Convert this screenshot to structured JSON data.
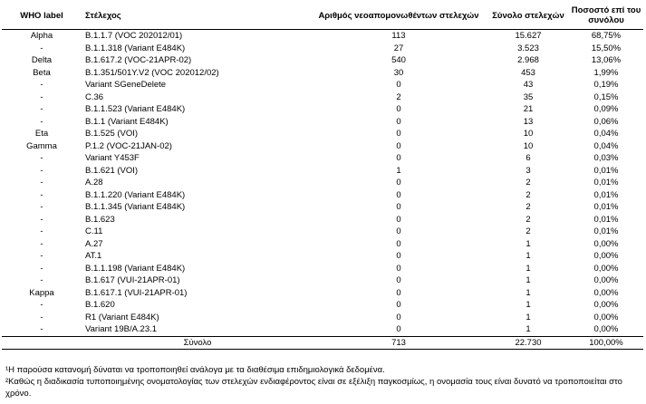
{
  "table": {
    "header": [
      "WHO label",
      "Στέλεχος",
      "Αριθμός νεοαπομονωθέντων στελεχών",
      "Σύνολο στελεχών",
      "Ποσοστό επί του συνόλου"
    ],
    "rows": [
      [
        "Alpha",
        "B.1.1.7 (VOC 202012/01)",
        "113",
        "15.627",
        "68,75%"
      ],
      [
        "-",
        "B.1.1.318 (Variant E484K)",
        "27",
        "3.523",
        "15,50%"
      ],
      [
        "Delta",
        "B.1.617.2 (VOC-21APR-02)",
        "540",
        "2.968",
        "13,06%"
      ],
      [
        "Beta",
        "B.1.351/501Y.V2 (VOC 202012/02)",
        "30",
        "453",
        "1,99%"
      ],
      [
        "-",
        "Variant SGeneDelete",
        "0",
        "43",
        "0,19%"
      ],
      [
        "-",
        "C.36",
        "2",
        "35",
        "0,15%"
      ],
      [
        "-",
        "B.1.1.523 (Variant E484K)",
        "0",
        "21",
        "0,09%"
      ],
      [
        "-",
        "B.1.1 (Variant E484K)",
        "0",
        "13",
        "0,06%"
      ],
      [
        "Eta",
        "B.1.525 (VOI)",
        "0",
        "10",
        "0,04%"
      ],
      [
        "Gamma",
        "P.1.2 (VOC-21JAN-02)",
        "0",
        "10",
        "0,04%"
      ],
      [
        "-",
        "Variant Y453F",
        "0",
        "6",
        "0,03%"
      ],
      [
        "-",
        "B.1.621 (VOI)",
        "1",
        "3",
        "0,01%"
      ],
      [
        "-",
        "A.28",
        "0",
        "2",
        "0,01%"
      ],
      [
        "-",
        "B.1.1.220 (Variant E484K)",
        "0",
        "2",
        "0,01%"
      ],
      [
        "-",
        "B.1.1.345 (Variant E484K)",
        "0",
        "2",
        "0,01%"
      ],
      [
        "-",
        "B.1.623",
        "0",
        "2",
        "0,01%"
      ],
      [
        "-",
        "C.11",
        "0",
        "2",
        "0,01%"
      ],
      [
        "-",
        "A.27",
        "0",
        "1",
        "0,00%"
      ],
      [
        "-",
        "AT.1",
        "0",
        "1",
        "0,00%"
      ],
      [
        "-",
        "B.1.1.198 (Variant E484K)",
        "0",
        "1",
        "0,00%"
      ],
      [
        "-",
        "B.1.617 (VUI-21APR-01)",
        "0",
        "1",
        "0,00%"
      ],
      [
        "Kappa",
        "B.1.617.1 (VUI-21APR-01)",
        "0",
        "1",
        "0,00%"
      ],
      [
        "-",
        "B.1.620",
        "0",
        "1",
        "0,00%"
      ],
      [
        "-",
        "R1 (Variant E484K)",
        "0",
        "1",
        "0,00%"
      ],
      [
        "-",
        "Variant 19B/A.23.1",
        "0",
        "1",
        "0,00%"
      ]
    ],
    "total": [
      "Σύνολο",
      "713",
      "22.730",
      "100,00%"
    ]
  },
  "footnotes": [
    "¹Η παρούσα κατανομή δύναται να τροποποιηθεί ανάλογα με τα διαθέσιμα επιδημιολογικά δεδομένα.",
    "²Καθώς η διαδικασία τυποποιημένης ονοματολογίας των στελεχών ενδιαφέροντος είναι σε εξέλιξη παγκοσμίως, η ονομασία τους είναι δυνατό να τροποποιείται στο χρόνο."
  ]
}
